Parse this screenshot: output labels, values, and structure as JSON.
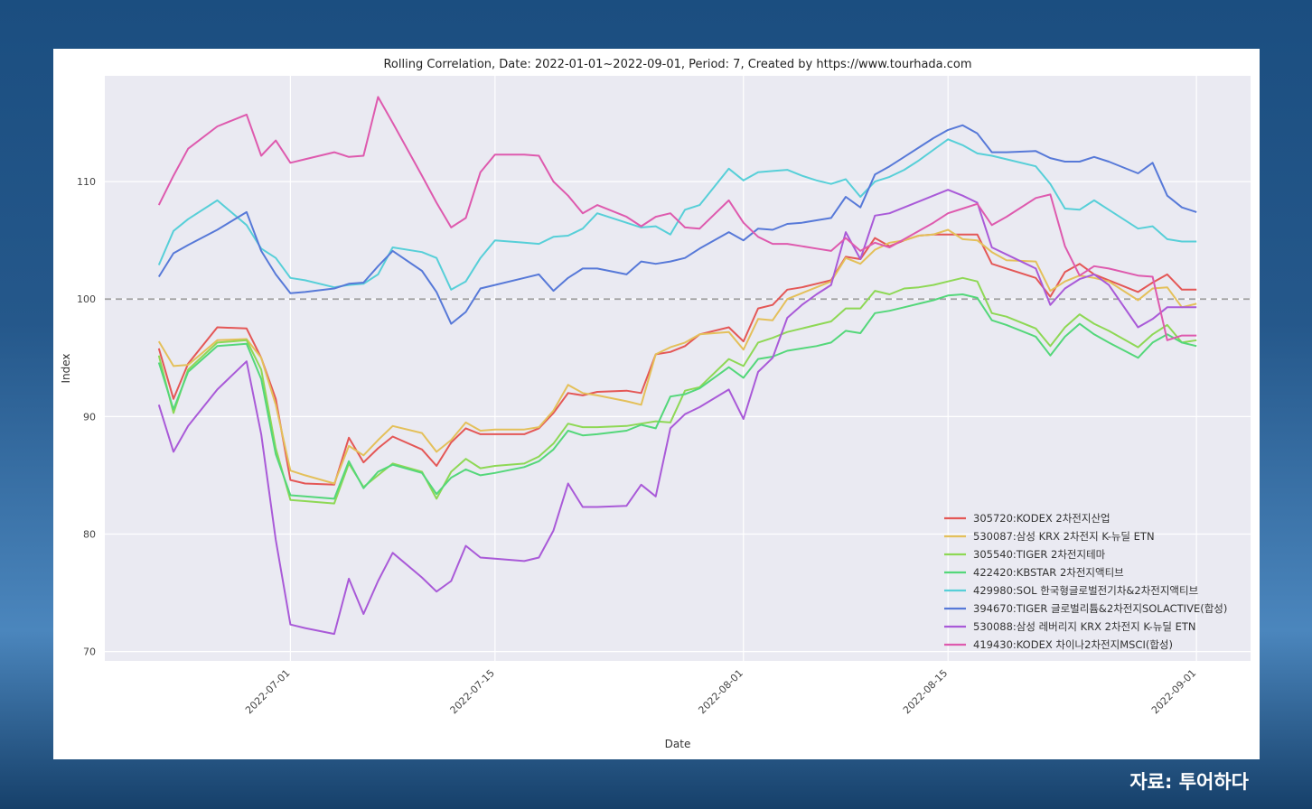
{
  "credit": "자료: 투어하다",
  "chart_data": {
    "type": "line",
    "title": "Rolling Correlation,  Date: 2022-01-01~2022-09-01, Period: 7, Created by https://www.tourhada.com",
    "xlabel": "Date",
    "ylabel": "Index",
    "x_ticks": [
      {
        "label": "2022-07-01",
        "day": 1
      },
      {
        "label": "2022-07-15",
        "day": 15
      },
      {
        "label": "2022-08-01",
        "day": 32
      },
      {
        "label": "2022-08-15",
        "day": 46
      },
      {
        "label": "2022-09-01",
        "day": 63
      }
    ],
    "x_range_days": [
      -11.7,
      66.7
    ],
    "y_ticks": [
      70,
      80,
      90,
      100,
      110
    ],
    "ylim": [
      69.2,
      119
    ],
    "reference_line": 100,
    "legend_position": "lower-right",
    "x_days": [
      -8,
      -7,
      -6,
      -4,
      -2,
      -1,
      0,
      1,
      2,
      4,
      5,
      6,
      7,
      8,
      10,
      11,
      12,
      13,
      14,
      15,
      17,
      18,
      19,
      20,
      21,
      22,
      24,
      25,
      26,
      27,
      28,
      29,
      31,
      32,
      33,
      34,
      35,
      36,
      37,
      38,
      39,
      40,
      41,
      42,
      43,
      44,
      45,
      46,
      47,
      48,
      49,
      50,
      52,
      53,
      54,
      55,
      56,
      57,
      59,
      60,
      61,
      62,
      63
    ],
    "series": [
      {
        "name": "305720:KODEX 2차전지산업",
        "color": "#e45756",
        "values": [
          95.8,
          91.5,
          94.5,
          97.6,
          97.5,
          95.0,
          91.5,
          84.6,
          84.3,
          84.2,
          88.2,
          86.1,
          87.3,
          88.3,
          87.2,
          85.8,
          87.8,
          89.0,
          88.5,
          88.5,
          88.5,
          89.0,
          90.3,
          92.0,
          91.8,
          92.1,
          92.2,
          92.0,
          95.3,
          95.5,
          96.0,
          97.0,
          97.6,
          96.4,
          99.2,
          99.5,
          100.8,
          101.0,
          101.3,
          101.6,
          103.6,
          103.4,
          105.2,
          104.5,
          105.0,
          105.4,
          105.5,
          105.5,
          105.5,
          105.5,
          103.0,
          102.6,
          101.8,
          100.2,
          102.3,
          103.0,
          102.1,
          101.6,
          100.6,
          101.4,
          102.1,
          100.8,
          100.8
        ]
      },
      {
        "name": "530087:삼성 KRX 2차전지 K-뉴딜 ETN",
        "color": "#e4c05a",
        "values": [
          96.4,
          94.3,
          94.4,
          96.5,
          96.6,
          95.0,
          91.0,
          85.4,
          85.0,
          84.3,
          87.5,
          86.7,
          88.0,
          89.2,
          88.6,
          87.0,
          88.0,
          89.5,
          88.8,
          88.9,
          88.9,
          89.1,
          90.5,
          92.7,
          92.0,
          91.8,
          91.3,
          91.0,
          95.3,
          95.9,
          96.3,
          97.0,
          97.2,
          95.7,
          98.3,
          98.2,
          100.0,
          100.5,
          101.0,
          101.5,
          103.5,
          103.0,
          104.2,
          104.8,
          105.0,
          105.4,
          105.5,
          105.9,
          105.1,
          105.0,
          104.0,
          103.3,
          103.2,
          100.7,
          101.5,
          102.0,
          101.8,
          101.5,
          99.9,
          100.9,
          101.0,
          99.3,
          99.6
        ]
      },
      {
        "name": "305540:TIGER 2차전지테마",
        "color": "#8ed855",
        "values": [
          95.2,
          90.3,
          94.0,
          96.3,
          96.5,
          94.0,
          87.3,
          82.9,
          82.8,
          82.6,
          86.0,
          84.0,
          85.0,
          86.0,
          85.3,
          83.0,
          85.3,
          86.4,
          85.6,
          85.8,
          86.0,
          86.6,
          87.7,
          89.4,
          89.1,
          89.1,
          89.2,
          89.4,
          89.6,
          89.5,
          92.2,
          92.5,
          94.9,
          94.3,
          96.3,
          96.7,
          97.2,
          97.5,
          97.8,
          98.1,
          99.2,
          99.2,
          100.7,
          100.4,
          100.9,
          101.0,
          101.2,
          101.5,
          101.8,
          101.5,
          98.8,
          98.5,
          97.5,
          96.0,
          97.6,
          98.7,
          97.9,
          97.3,
          95.9,
          97.0,
          97.8,
          96.3,
          96.5
        ]
      },
      {
        "name": "422420:KBSTAR 2차전지액티브",
        "color": "#54d77a",
        "values": [
          94.6,
          90.6,
          93.8,
          96.0,
          96.2,
          93.2,
          86.8,
          83.3,
          83.2,
          83.0,
          86.2,
          83.9,
          85.3,
          85.9,
          85.2,
          83.4,
          84.8,
          85.5,
          85.0,
          85.2,
          85.7,
          86.2,
          87.2,
          88.8,
          88.4,
          88.5,
          88.8,
          89.3,
          89.0,
          91.7,
          91.9,
          92.4,
          94.2,
          93.3,
          94.9,
          95.1,
          95.6,
          95.8,
          96.0,
          96.3,
          97.3,
          97.1,
          98.8,
          99.0,
          99.3,
          99.6,
          99.9,
          100.3,
          100.4,
          100.1,
          98.2,
          97.8,
          96.8,
          95.2,
          96.8,
          97.9,
          97.0,
          96.3,
          95.0,
          96.3,
          97.0,
          96.3,
          96.0
        ]
      },
      {
        "name": "429980:SOL 한국형글로벌전기차&2차전지액티브",
        "color": "#57cfd8",
        "values": [
          102.9,
          105.8,
          106.8,
          108.4,
          106.3,
          104.3,
          103.5,
          101.8,
          101.6,
          101.0,
          101.2,
          101.3,
          102.1,
          104.4,
          104.0,
          103.5,
          100.8,
          101.5,
          103.5,
          105.0,
          104.8,
          104.7,
          105.3,
          105.4,
          106.0,
          107.3,
          106.5,
          106.1,
          106.2,
          105.5,
          107.6,
          108.0,
          111.1,
          110.1,
          110.8,
          110.9,
          111.0,
          110.5,
          110.1,
          109.8,
          110.2,
          108.7,
          110.0,
          110.4,
          111.0,
          111.8,
          112.7,
          113.6,
          113.1,
          112.4,
          112.2,
          111.9,
          111.3,
          109.8,
          107.7,
          107.6,
          108.4,
          107.6,
          106.0,
          106.2,
          105.1,
          104.9,
          104.9
        ]
      },
      {
        "name": "394670:TIGER 글로벌리튬&2차전지SOLACTIVE(합성)",
        "color": "#5779d8",
        "values": [
          101.9,
          103.9,
          104.6,
          105.9,
          107.4,
          104.1,
          102.1,
          100.5,
          100.6,
          100.9,
          101.3,
          101.4,
          102.8,
          104.1,
          102.4,
          100.6,
          97.9,
          98.9,
          100.9,
          101.2,
          101.8,
          102.1,
          100.7,
          101.8,
          102.6,
          102.6,
          102.1,
          103.2,
          103.0,
          103.2,
          103.5,
          104.3,
          105.7,
          105.0,
          106.0,
          105.9,
          106.4,
          106.5,
          106.7,
          106.9,
          108.7,
          107.8,
          110.6,
          111.3,
          112.1,
          112.9,
          113.7,
          114.4,
          114.8,
          114.1,
          112.5,
          112.5,
          112.6,
          112.0,
          111.7,
          111.7,
          112.1,
          111.7,
          110.7,
          111.6,
          108.8,
          107.8,
          107.4
        ]
      },
      {
        "name": "530088:삼성 레버리지 KRX 2차전지 K-뉴딜 ETN",
        "color": "#a95ad8",
        "values": [
          91.0,
          87.0,
          89.2,
          92.3,
          94.7,
          88.5,
          79.5,
          72.3,
          72.0,
          71.5,
          76.2,
          73.2,
          76.0,
          78.4,
          76.3,
          75.1,
          76.0,
          79.0,
          78.0,
          77.9,
          77.7,
          78.0,
          80.3,
          84.3,
          82.3,
          82.3,
          82.4,
          84.2,
          83.2,
          89.0,
          90.2,
          90.8,
          92.3,
          89.8,
          93.8,
          95.0,
          98.4,
          99.5,
          100.4,
          101.2,
          105.7,
          103.4,
          107.1,
          107.3,
          107.8,
          108.3,
          108.8,
          109.3,
          108.8,
          108.2,
          104.4,
          103.8,
          102.6,
          99.5,
          100.9,
          101.7,
          102.1,
          101.2,
          97.6,
          98.3,
          99.3,
          99.3,
          99.3
        ]
      },
      {
        "name": "419430:KODEX 차이나2차전지MSCI(합성)",
        "color": "#de5aae",
        "values": [
          108.0,
          110.5,
          112.8,
          114.7,
          115.7,
          112.2,
          113.5,
          111.6,
          111.9,
          112.5,
          112.1,
          112.2,
          117.2,
          115.0,
          110.5,
          108.2,
          106.1,
          106.9,
          110.8,
          112.3,
          112.3,
          112.2,
          110.0,
          108.8,
          107.3,
          108.0,
          107.0,
          106.2,
          107.0,
          107.3,
          106.1,
          106.0,
          108.4,
          106.5,
          105.3,
          104.7,
          104.7,
          104.5,
          104.3,
          104.1,
          105.2,
          104.1,
          104.8,
          104.4,
          105.1,
          105.8,
          106.5,
          107.3,
          107.7,
          108.1,
          106.3,
          107.0,
          108.6,
          108.9,
          104.5,
          102.0,
          102.8,
          102.6,
          102.0,
          101.9,
          96.5,
          96.9,
          96.9
        ]
      }
    ]
  }
}
